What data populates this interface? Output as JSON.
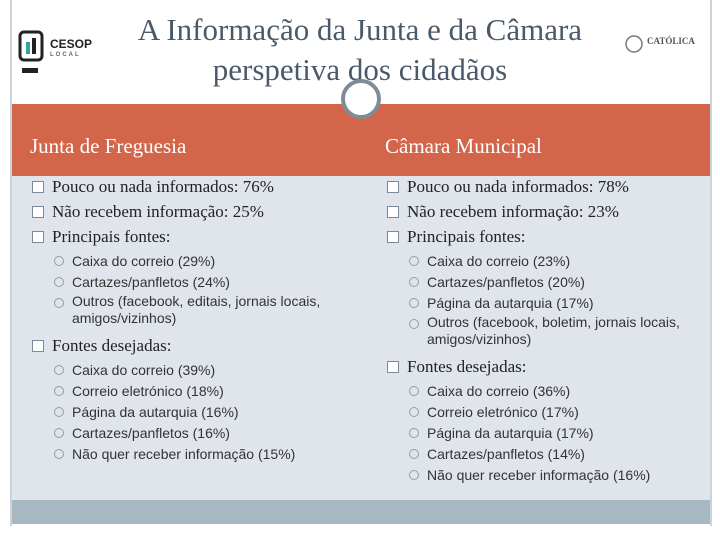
{
  "header": {
    "title_lines": [
      "A Informação da Junta e da Câmara",
      "perspetiva dos cidadãos"
    ],
    "left_logo": {
      "name": "CESOP",
      "sub": "LOCAL"
    },
    "right_logo": {
      "name": "CATÓLICA"
    }
  },
  "columns": [
    {
      "heading": "Junta de Freguesia",
      "items": [
        {
          "text": "Pouco ou nada informados: 76%",
          "sub": []
        },
        {
          "text": "Não recebem informação: 25%",
          "sub": []
        },
        {
          "text": "Principais fontes:",
          "sub": [
            "Caixa do correio (29%)",
            "Cartazes/panfletos (24%)",
            "Outros (facebook, editais, jornais locais, amigos/vizinhos)"
          ]
        },
        {
          "text": "Fontes desejadas:",
          "sub": [
            "Caixa do correio (39%)",
            "Correio eletrónico (18%)",
            "Página da autarquia (16%)",
            "Cartazes/panfletos (16%)",
            "Não quer receber informação (15%)"
          ]
        }
      ]
    },
    {
      "heading": "Câmara Municipal",
      "items": [
        {
          "text": "Pouco ou nada informados: 78%",
          "sub": []
        },
        {
          "text": "Não recebem informação: 23%",
          "sub": []
        },
        {
          "text": "Principais fontes:",
          "sub": [
            "Caixa do correio (23%)",
            "Cartazes/panfletos (20%)",
            "Página da autarquia (17%)",
            "Outros (facebook, boletim, jornais locais, amigos/vizinhos)"
          ]
        },
        {
          "text": "Fontes desejadas:",
          "sub": [
            "Caixa do correio (36%)",
            "Correio eletrónico (17%)",
            "Página da autarquia (17%)",
            "Cartazes/panfletos (14%)",
            "Não quer receber informação (16%)"
          ]
        }
      ]
    }
  ]
}
